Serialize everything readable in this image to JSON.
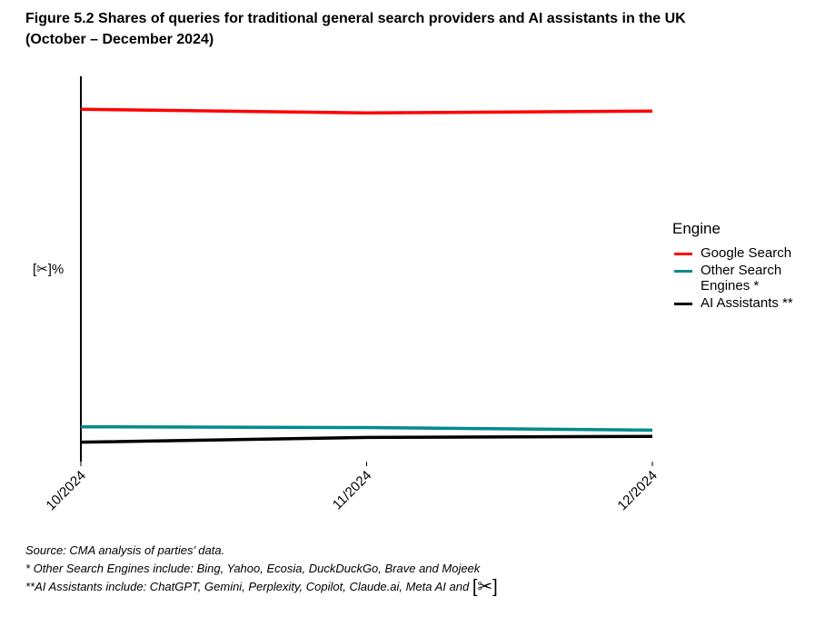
{
  "chart_data": {
    "type": "line",
    "title": "Figure 5.2 Shares of queries for traditional general search providers and AI assistants in the UK",
    "subtitle": "(October – December 2024)",
    "xlabel": "",
    "ylabel": "[✂]%",
    "categories": [
      "10/2024",
      "11/2024",
      "12/2024"
    ],
    "ylim": [
      0,
      100
    ],
    "y_ticks_shown": false,
    "legend_title": "Engine",
    "legend_position": "right",
    "series": [
      {
        "name": "Google Search",
        "color": "#ff0000",
        "values": [
          94,
          93,
          93.5
        ],
        "x": [
          0,
          0.5,
          1
        ]
      },
      {
        "name": "Other Search Engines *",
        "name_line1": "Other Search",
        "name_line2": "Engines *",
        "color": "#008b8b",
        "values": [
          7.5,
          7.3,
          6.6
        ],
        "x": [
          0,
          0.5,
          1
        ]
      },
      {
        "name": "AI Assistants **",
        "color": "#000000",
        "values": [
          3.3,
          4.6,
          4.9
        ],
        "x": [
          0,
          0.5,
          1
        ]
      }
    ]
  },
  "notes": {
    "source": "Source: CMA analysis of parties’ data.",
    "note1": "* Other Search Engines include: Bing, Yahoo, Ecosia, DuckDuckGo, Brave and Mojeek",
    "note2": "**AI Assistants include: ChatGPT, Gemini, Perplexity, Copilot, Claude.ai, Meta AI and ",
    "note2_redaction": "[✂]"
  }
}
